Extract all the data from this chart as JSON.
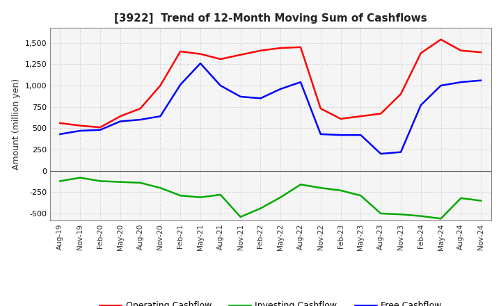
{
  "title": "[3922]  Trend of 12-Month Moving Sum of Cashflows",
  "ylabel": "Amount (million yen)",
  "xlabels": [
    "Aug-19",
    "Nov-19",
    "Feb-20",
    "May-20",
    "Aug-20",
    "Nov-20",
    "Feb-21",
    "May-21",
    "Aug-21",
    "Nov-21",
    "Feb-22",
    "May-22",
    "Aug-22",
    "Nov-22",
    "Feb-23",
    "May-23",
    "Aug-23",
    "Nov-23",
    "Feb-24",
    "May-24",
    "Aug-24",
    "Nov-24"
  ],
  "operating": [
    560,
    530,
    510,
    640,
    730,
    1000,
    1400,
    1370,
    1310,
    1360,
    1410,
    1440,
    1450,
    730,
    610,
    640,
    670,
    900,
    1380,
    1540,
    1410,
    1390
  ],
  "investing": [
    -120,
    -80,
    -120,
    -130,
    -140,
    -200,
    -290,
    -310,
    -280,
    -540,
    -440,
    -310,
    -160,
    -200,
    -230,
    -290,
    -500,
    -510,
    -530,
    -560,
    -320,
    -350
  ],
  "free": [
    430,
    470,
    480,
    580,
    600,
    640,
    1010,
    1260,
    1000,
    870,
    850,
    960,
    1040,
    430,
    420,
    420,
    200,
    220,
    770,
    1000,
    1040,
    1060
  ],
  "ylim": [
    -580,
    1680
  ],
  "yticks": [
    -500,
    -250,
    0,
    250,
    500,
    750,
    1000,
    1250,
    1500
  ],
  "colors": {
    "operating": "#ff0000",
    "investing": "#00aa00",
    "free": "#0000ff"
  },
  "legend_labels": [
    "Operating Cashflow",
    "Investing Cashflow",
    "Free Cashflow"
  ],
  "background_color": "#ffffff",
  "plot_bg_color": "#f5f5f5",
  "grid_color": "#bbbbbb"
}
